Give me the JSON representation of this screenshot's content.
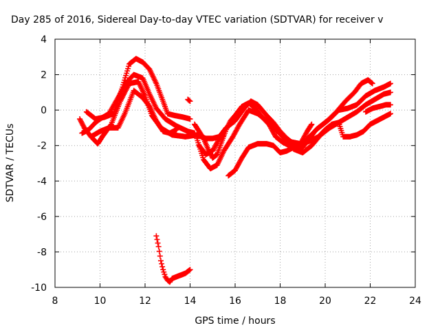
{
  "chart_data": {
    "type": "scatter",
    "title": "Day 285 of 2016, Sidereal Day-to-day VTEC variation (SDTVAR) for receiver v",
    "xlabel": "GPS time / hours",
    "ylabel": "SDTVAR / TECUs",
    "xlim": [
      8,
      24
    ],
    "ylim": [
      -10,
      4
    ],
    "xticks": [
      8,
      10,
      12,
      14,
      16,
      18,
      20,
      22,
      24
    ],
    "yticks": [
      -10,
      -8,
      -6,
      -4,
      -2,
      0,
      2,
      4
    ],
    "grid": true,
    "marker": "+",
    "color": "#ff0000",
    "series": [
      {
        "values": [
          [
            9.1,
            -0.5
          ],
          [
            9.3,
            -1.0
          ],
          [
            9.6,
            -1.5
          ],
          [
            9.9,
            -1.9
          ],
          [
            10.1,
            -1.5
          ],
          [
            10.5,
            -0.8
          ],
          [
            10.9,
            0.5
          ],
          [
            11.3,
            1.5
          ],
          [
            11.7,
            1.6
          ],
          [
            12.0,
            0.8
          ],
          [
            12.3,
            -0.3
          ],
          [
            12.7,
            -1.0
          ],
          [
            13.2,
            -1.4
          ],
          [
            13.8,
            -1.5
          ],
          [
            14.3,
            -1.4
          ],
          [
            14.7,
            -1.6
          ],
          [
            15.0,
            -1.6
          ],
          [
            15.3,
            -1.5
          ],
          [
            15.6,
            -1.0
          ],
          [
            16.0,
            -0.6
          ],
          [
            16.4,
            0.1
          ],
          [
            16.7,
            0.5
          ],
          [
            17.0,
            0.3
          ],
          [
            17.4,
            -0.3
          ],
          [
            17.7,
            -0.7
          ],
          [
            18.0,
            -1.2
          ],
          [
            18.3,
            -1.6
          ],
          [
            18.6,
            -1.9
          ],
          [
            19.0,
            -1.9
          ],
          [
            19.3,
            -1.5
          ],
          [
            19.7,
            -1.0
          ],
          [
            20.1,
            -0.6
          ],
          [
            20.5,
            -0.1
          ],
          [
            20.9,
            0.5
          ],
          [
            21.3,
            1.0
          ],
          [
            21.6,
            1.5
          ],
          [
            21.9,
            1.7
          ],
          [
            22.1,
            1.5
          ]
        ]
      },
      {
        "values": [
          [
            9.2,
            -1.3
          ],
          [
            9.5,
            -1.1
          ],
          [
            9.8,
            -0.7
          ],
          [
            10.0,
            -0.5
          ],
          [
            10.4,
            -0.2
          ],
          [
            10.8,
            0.7
          ],
          [
            11.2,
            1.6
          ],
          [
            11.5,
            2.0
          ],
          [
            11.9,
            1.8
          ],
          [
            12.2,
            0.9
          ],
          [
            12.5,
            0.1
          ],
          [
            12.9,
            -0.5
          ],
          [
            13.4,
            -0.9
          ],
          [
            13.9,
            -1.2
          ],
          [
            14.2,
            -1.3
          ]
        ]
      },
      {
        "values": [
          [
            9.4,
            -0.1
          ],
          [
            9.8,
            -0.5
          ],
          [
            10.2,
            -0.4
          ],
          [
            10.6,
            -0.2
          ],
          [
            11.0,
            1.3
          ],
          [
            11.3,
            2.6
          ],
          [
            11.6,
            2.9
          ],
          [
            11.9,
            2.7
          ],
          [
            12.2,
            2.3
          ],
          [
            12.5,
            1.5
          ],
          [
            12.8,
            0.5
          ],
          [
            13.0,
            -0.2
          ],
          [
            13.3,
            -0.3
          ],
          [
            13.7,
            -0.4
          ],
          [
            14.0,
            -0.5
          ]
        ]
      },
      {
        "values": [
          [
            9.6,
            -1.5
          ],
          [
            10.0,
            -1.2
          ],
          [
            10.4,
            -1.0
          ],
          [
            10.8,
            -1.0
          ],
          [
            11.1,
            -0.2
          ],
          [
            11.5,
            1.1
          ],
          [
            11.9,
            0.7
          ],
          [
            12.2,
            0.2
          ],
          [
            12.5,
            -0.6
          ],
          [
            12.8,
            -1.2
          ],
          [
            13.1,
            -1.3
          ],
          [
            13.4,
            -1.1
          ]
        ]
      },
      {
        "values": [
          [
            13.9,
            0.6
          ],
          [
            14.0,
            0.5
          ]
        ]
      },
      {
        "values": [
          [
            14.2,
            -0.8
          ],
          [
            14.4,
            -1.2
          ],
          [
            14.6,
            -1.6
          ],
          [
            14.8,
            -2.2
          ],
          [
            15.0,
            -2.7
          ],
          [
            15.2,
            -2.5
          ],
          [
            15.4,
            -1.8
          ],
          [
            15.6,
            -1.1
          ],
          [
            15.8,
            -0.6
          ],
          [
            16.0,
            -0.3
          ],
          [
            16.3,
            0.2
          ],
          [
            16.6,
            0.4
          ],
          [
            16.9,
            0.1
          ],
          [
            17.2,
            -0.4
          ],
          [
            17.5,
            -0.8
          ],
          [
            17.8,
            -1.5
          ],
          [
            18.1,
            -1.8
          ],
          [
            18.4,
            -2.0
          ],
          [
            18.7,
            -2.0
          ],
          [
            19.0,
            -2.1
          ],
          [
            19.3,
            -1.6
          ],
          [
            19.6,
            -1.1
          ],
          [
            19.9,
            -0.8
          ],
          [
            20.2,
            -0.5
          ],
          [
            20.6,
            0.0
          ],
          [
            21.0,
            0.1
          ],
          [
            21.4,
            0.3
          ],
          [
            21.8,
            0.8
          ],
          [
            22.2,
            1.1
          ],
          [
            22.6,
            1.3
          ],
          [
            22.9,
            1.5
          ]
        ]
      },
      {
        "values": [
          [
            14.3,
            -1.6
          ],
          [
            14.6,
            -2.8
          ],
          [
            14.9,
            -3.3
          ],
          [
            15.2,
            -3.1
          ],
          [
            15.5,
            -2.3
          ],
          [
            15.9,
            -1.5
          ],
          [
            16.2,
            -0.8
          ],
          [
            16.6,
            0.0
          ],
          [
            17.0,
            -0.2
          ],
          [
            17.4,
            -0.6
          ],
          [
            17.8,
            -1.1
          ],
          [
            18.2,
            -1.6
          ],
          [
            18.6,
            -2.2
          ],
          [
            19.0,
            -2.4
          ],
          [
            19.4,
            -2.0
          ],
          [
            19.8,
            -1.4
          ],
          [
            20.2,
            -1.0
          ],
          [
            20.6,
            -0.7
          ],
          [
            21.0,
            -0.4
          ],
          [
            21.4,
            -0.1
          ],
          [
            21.8,
            0.3
          ],
          [
            22.2,
            0.6
          ],
          [
            22.6,
            0.9
          ],
          [
            22.9,
            1.0
          ]
        ]
      },
      {
        "values": [
          [
            14.4,
            -2.0
          ],
          [
            14.7,
            -2.5
          ],
          [
            15.0,
            -2.3
          ],
          [
            15.3,
            -1.6
          ],
          [
            15.5,
            -1.4
          ]
        ]
      },
      {
        "values": [
          [
            15.7,
            -3.7
          ],
          [
            16.0,
            -3.4
          ],
          [
            16.3,
            -2.7
          ],
          [
            16.6,
            -2.1
          ],
          [
            17.0,
            -1.9
          ],
          [
            17.4,
            -1.9
          ],
          [
            17.7,
            -2.0
          ],
          [
            18.0,
            -2.4
          ],
          [
            18.3,
            -2.3
          ],
          [
            18.6,
            -2.1
          ],
          [
            19.0,
            -1.9
          ],
          [
            19.4,
            -1.7
          ],
          [
            19.7,
            -1.5
          ],
          [
            20.0,
            -1.1
          ],
          [
            20.3,
            -0.8
          ],
          [
            20.6,
            -0.7
          ],
          [
            20.8,
            -1.5
          ],
          [
            21.1,
            -1.5
          ],
          [
            21.4,
            -1.4
          ],
          [
            21.7,
            -1.2
          ],
          [
            22.0,
            -0.8
          ],
          [
            22.3,
            -0.6
          ],
          [
            22.6,
            -0.4
          ],
          [
            22.9,
            -0.2
          ]
        ]
      },
      {
        "values": [
          [
            18.5,
            -1.8
          ],
          [
            18.9,
            -1.9
          ],
          [
            19.2,
            -1.2
          ],
          [
            19.4,
            -0.8
          ]
        ]
      },
      {
        "values": [
          [
            21.8,
            -0.1
          ],
          [
            22.1,
            0.1
          ],
          [
            22.4,
            0.2
          ],
          [
            22.7,
            0.3
          ],
          [
            22.9,
            0.3
          ]
        ]
      },
      {
        "values": [
          [
            12.5,
            -7.1
          ],
          [
            12.6,
            -7.7
          ],
          [
            12.7,
            -8.5
          ],
          [
            12.8,
            -9.0
          ],
          [
            12.9,
            -9.4
          ],
          [
            13.0,
            -9.6
          ],
          [
            13.1,
            -9.7
          ],
          [
            13.2,
            -9.5
          ],
          [
            13.4,
            -9.4
          ],
          [
            13.6,
            -9.3
          ],
          [
            13.8,
            -9.2
          ],
          [
            14.0,
            -9.0
          ]
        ]
      }
    ]
  }
}
